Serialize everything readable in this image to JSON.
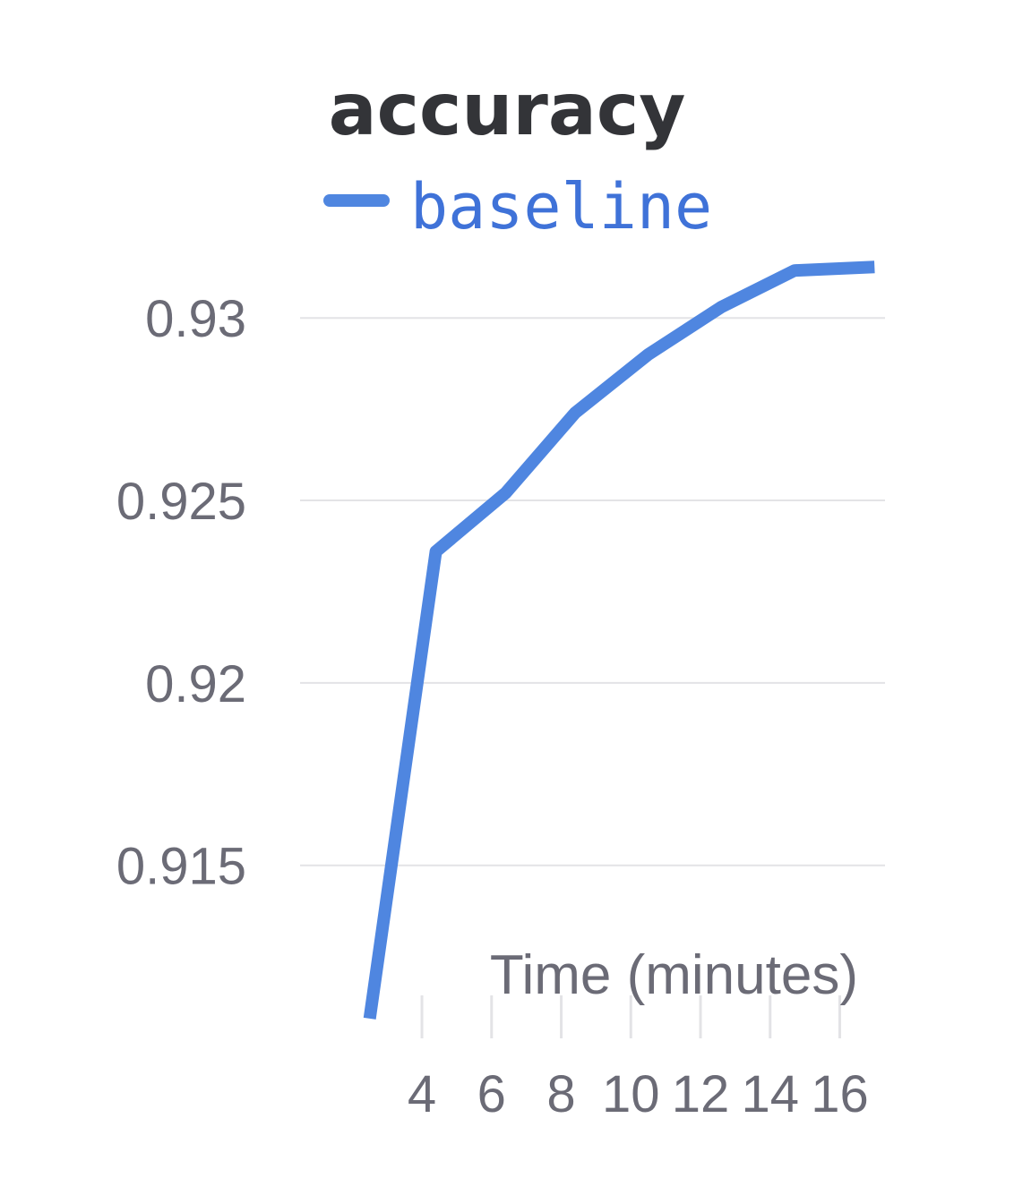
{
  "chart_data": {
    "type": "line",
    "title": "accuracy",
    "xlabel": "Time (minutes)",
    "ylabel": "",
    "x_ticks": [
      "4",
      "6",
      "8",
      "10",
      "12",
      "14",
      "16"
    ],
    "y_ticks": [
      "0.915",
      "0.92",
      "0.925",
      "0.93"
    ],
    "xlim": [
      0.5,
      17.3
    ],
    "ylim": [
      0.9107,
      0.9316
    ],
    "grid": "horizontal",
    "legend_position": "top",
    "series": [
      {
        "name": "baseline",
        "color": "#4f86e0",
        "x": [
          2.5,
          4.4,
          6.4,
          8.4,
          10.5,
          12.6,
          14.7,
          17.0
        ],
        "y": [
          0.9108,
          0.9236,
          0.9252,
          0.9274,
          0.929,
          0.9303,
          0.9313,
          0.9314
        ]
      }
    ]
  }
}
